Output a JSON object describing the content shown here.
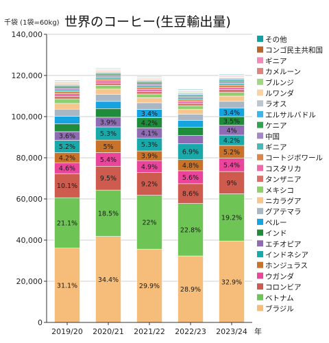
{
  "chart_data": {
    "type": "bar",
    "stacked": true,
    "title": "世界のコーヒー(生豆輸出量)",
    "unit_label": "千袋 (1袋=60kg)",
    "x_suffix": "年",
    "ylim": [
      0,
      140000
    ],
    "yticks": [
      0,
      20000,
      40000,
      60000,
      80000,
      100000,
      120000,
      140000
    ],
    "ytick_labels": [
      "0",
      "20,000",
      "40,000",
      "60,000",
      "80,000",
      "100,000",
      "120,000",
      "140,000"
    ],
    "grid": true,
    "legend_position": "right",
    "categories": [
      "2019/20",
      "2020/21",
      "2021/22",
      "2022/23",
      "2023/24"
    ],
    "series": [
      {
        "name": "ブラジル",
        "color": "#f5bc7a",
        "values": [
          36100,
          41800,
          35600,
          32300,
          39500
        ],
        "labels": [
          "31.1%",
          "34.4%",
          "29.9%",
          "28.9%",
          "32.9%"
        ]
      },
      {
        "name": "ベトナム",
        "color": "#6ec454",
        "values": [
          24500,
          22500,
          26200,
          25500,
          23000
        ],
        "labels": [
          "21.1%",
          "18.5%",
          "22%",
          "22.8%",
          "19.2%"
        ]
      },
      {
        "name": "コロンビア",
        "color": "#cd5b4e",
        "values": [
          11700,
          11600,
          11000,
          9600,
          10800
        ],
        "labels": [
          "10.1%",
          "9.5%",
          "9.2%",
          "8.6%",
          "9%"
        ]
      },
      {
        "name": "ウガンダ",
        "color": "#e8459b",
        "values": [
          5300,
          6600,
          5800,
          6300,
          6500
        ],
        "labels": [
          "4.6%",
          "5.4%",
          "4.9%",
          "5.6%",
          "5.4%"
        ]
      },
      {
        "name": "ホンジュラス",
        "color": "#c9732a",
        "values": [
          4900,
          6100,
          4700,
          5400,
          6200
        ],
        "labels": [
          "4.2%",
          "5%",
          "3.9%",
          "4.8%",
          "5.2%"
        ]
      },
      {
        "name": "インドネシア",
        "color": "#1aa8a8",
        "values": [
          6000,
          6400,
          6300,
          7700,
          5000
        ],
        "labels": [
          "5.2%",
          "5.3%",
          "5.3%",
          "6.9%",
          "4.2%"
        ]
      },
      {
        "name": "エチオピア",
        "color": "#8e6bb3",
        "values": [
          4200,
          4700,
          4900,
          4100,
          4800
        ],
        "labels": [
          "3.6%",
          "3.9%",
          "4.1%",
          "",
          "4%"
        ]
      },
      {
        "name": "インド",
        "color": "#1e8c3a",
        "values": [
          3800,
          4200,
          5000,
          3900,
          4200
        ],
        "labels": [
          "",
          "",
          "4.2%",
          "",
          "3.5%"
        ]
      },
      {
        "name": "ペルー",
        "color": "#17a2e0",
        "values": [
          3600,
          3500,
          4000,
          3300,
          4100
        ],
        "labels": [
          "",
          "",
          "3.4%",
          "",
          "3.4%"
        ]
      },
      {
        "name": "グアテマラ",
        "color": "#a9b6c4",
        "values": [
          3500,
          3400,
          3200,
          3100,
          3300
        ],
        "labels": [
          "",
          "",
          "",
          "",
          ""
        ]
      },
      {
        "name": "ニカラグア",
        "color": "#f7c68e",
        "values": [
          2800,
          2600,
          2500,
          2400,
          2600
        ],
        "labels": [
          "",
          "",
          "",
          "",
          ""
        ]
      },
      {
        "name": "メキシコ",
        "color": "#8fcf6c",
        "values": [
          2200,
          1800,
          1800,
          1700,
          1800
        ],
        "labels": [
          "",
          "",
          "",
          "",
          ""
        ]
      },
      {
        "name": "タンザニア",
        "color": "#d9706a",
        "values": [
          1300,
          1100,
          1200,
          1100,
          1300
        ],
        "labels": [
          "",
          "",
          "",
          "",
          ""
        ]
      },
      {
        "name": "コスタリカ",
        "color": "#ee6aa9",
        "values": [
          1200,
          1100,
          1100,
          1000,
          1100
        ],
        "labels": [
          "",
          "",
          "",
          "",
          ""
        ]
      },
      {
        "name": "コートジボワール",
        "color": "#d8884a",
        "values": [
          1000,
          900,
          1000,
          900,
          1100
        ],
        "labels": [
          "",
          "",
          "",
          "",
          ""
        ]
      },
      {
        "name": "ギニア",
        "color": "#47b9b9",
        "values": [
          900,
          900,
          800,
          800,
          900
        ],
        "labels": [
          "",
          "",
          "",
          "",
          ""
        ]
      },
      {
        "name": "中国",
        "color": "#a487c4",
        "values": [
          900,
          700,
          800,
          700,
          800
        ],
        "labels": [
          "",
          "",
          "",
          "",
          ""
        ]
      },
      {
        "name": "ケニア",
        "color": "#33a352",
        "values": [
          700,
          700,
          700,
          600,
          700
        ],
        "labels": [
          "",
          "",
          "",
          "",
          ""
        ]
      },
      {
        "name": "エルサルバドル",
        "color": "#3fb4e6",
        "values": [
          600,
          600,
          600,
          500,
          600
        ],
        "labels": [
          "",
          "",
          "",
          "",
          ""
        ]
      },
      {
        "name": "ラオス",
        "color": "#bcc6d0",
        "values": [
          500,
          500,
          500,
          500,
          500
        ],
        "labels": [
          "",
          "",
          "",
          "",
          ""
        ]
      },
      {
        "name": "ルワンダ",
        "color": "#f9d2a3",
        "values": [
          400,
          400,
          400,
          400,
          400
        ],
        "labels": [
          "",
          "",
          "",
          "",
          ""
        ]
      },
      {
        "name": "ブルンジ",
        "color": "#9fd783",
        "values": [
          400,
          300,
          300,
          300,
          300
        ],
        "labels": [
          "",
          "",
          "",
          "",
          ""
        ]
      },
      {
        "name": "カメルーン",
        "color": "#de847e",
        "values": [
          300,
          300,
          300,
          300,
          300
        ],
        "labels": [
          "",
          "",
          "",
          "",
          ""
        ]
      },
      {
        "name": "ギニア",
        "color": "#f289bb",
        "values": [
          300,
          300,
          300,
          300,
          300
        ],
        "labels": [
          "",
          "",
          "",
          "",
          ""
        ]
      },
      {
        "name": "コンゴ民主共和国",
        "color": "#b8672c",
        "values": [
          200,
          200,
          200,
          200,
          200
        ],
        "labels": [
          "",
          "",
          "",
          "",
          ""
        ]
      },
      {
        "name": "その他",
        "color": "#14a0a0",
        "values": [
          300,
          300,
          300,
          300,
          300
        ],
        "labels": [
          "",
          "",
          "",
          "",
          ""
        ]
      }
    ]
  }
}
